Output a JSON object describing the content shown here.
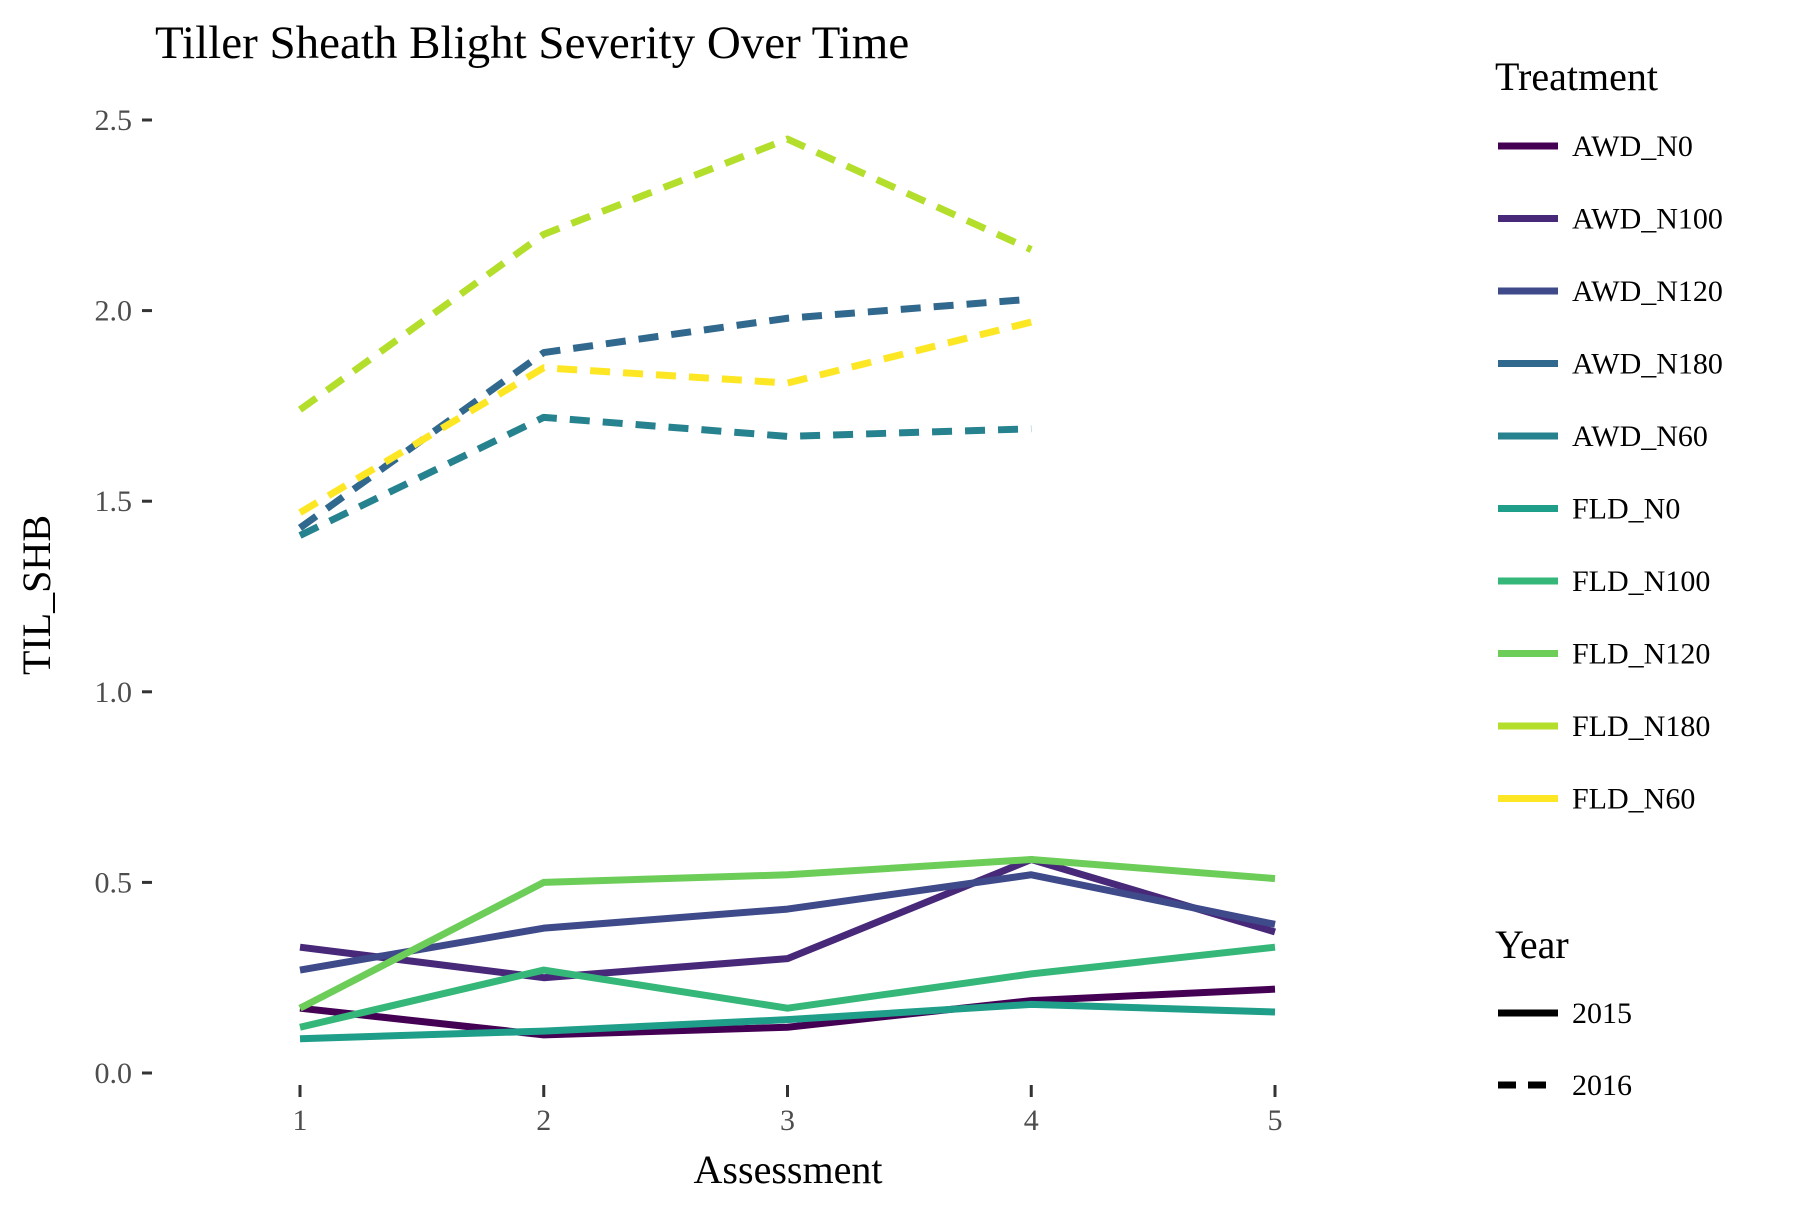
{
  "chart_data": {
    "type": "line",
    "title": "Tiller Sheath Blight Severity Over Time",
    "xlabel": "Assessment",
    "ylabel": "TIL_SHB",
    "x": [
      1,
      2,
      3,
      4,
      5
    ],
    "x_ticks": [
      "1",
      "2",
      "3",
      "4",
      "5"
    ],
    "y_ticks": [
      "0.0",
      "0.5",
      "1.0",
      "1.5",
      "2.0",
      "2.5"
    ],
    "xlim": [
      0.5,
      5.5
    ],
    "ylim": [
      0,
      2.55
    ],
    "grid": false,
    "legend_placement": "right",
    "legend_color": {
      "title": "Treatment",
      "entries": [
        {
          "label": "AWD_N0",
          "color": "#440154"
        },
        {
          "label": "AWD_N100",
          "color": "#482878"
        },
        {
          "label": "AWD_N120",
          "color": "#3E4A89"
        },
        {
          "label": "AWD_N180",
          "color": "#31688E"
        },
        {
          "label": "AWD_N60",
          "color": "#26828E"
        },
        {
          "label": "FLD_N0",
          "color": "#1F9E89"
        },
        {
          "label": "FLD_N100",
          "color": "#35B779"
        },
        {
          "label": "FLD_N120",
          "color": "#6DCD59"
        },
        {
          "label": "FLD_N180",
          "color": "#B4DE2C"
        },
        {
          "label": "FLD_N60",
          "color": "#FDE725"
        }
      ]
    },
    "legend_linetype": {
      "title": "Year",
      "entries": [
        {
          "label": "2015",
          "dash": "solid"
        },
        {
          "label": "2016",
          "dash": "dashed"
        }
      ]
    },
    "series": [
      {
        "treatment": "AWD_N0",
        "year": "2015",
        "color": "#440154",
        "dash": "solid",
        "values": [
          0.17,
          0.1,
          0.12,
          0.19,
          0.22
        ]
      },
      {
        "treatment": "AWD_N100",
        "year": "2015",
        "color": "#482878",
        "dash": "solid",
        "values": [
          0.33,
          0.25,
          0.3,
          0.56,
          0.37
        ]
      },
      {
        "treatment": "AWD_N120",
        "year": "2015",
        "color": "#3E4A89",
        "dash": "solid",
        "values": [
          0.27,
          0.38,
          0.43,
          0.52,
          0.39
        ]
      },
      {
        "treatment": "FLD_N0",
        "year": "2015",
        "color": "#1F9E89",
        "dash": "solid",
        "values": [
          0.09,
          0.11,
          0.14,
          0.18,
          0.16
        ]
      },
      {
        "treatment": "FLD_N100",
        "year": "2015",
        "color": "#35B779",
        "dash": "solid",
        "values": [
          0.12,
          0.27,
          0.17,
          0.26,
          0.33
        ]
      },
      {
        "treatment": "FLD_N120",
        "year": "2015",
        "color": "#6DCD59",
        "dash": "solid",
        "values": [
          0.17,
          0.5,
          0.52,
          0.56,
          0.51
        ]
      },
      {
        "treatment": "AWD_N180",
        "year": "2016",
        "color": "#31688E",
        "dash": "dashed",
        "values": [
          1.43,
          1.89,
          1.98,
          2.03,
          null
        ]
      },
      {
        "treatment": "AWD_N60",
        "year": "2016",
        "color": "#26828E",
        "dash": "dashed",
        "values": [
          1.41,
          1.72,
          1.67,
          1.69,
          null
        ]
      },
      {
        "treatment": "FLD_N180",
        "year": "2016",
        "color": "#B4DE2C",
        "dash": "dashed",
        "values": [
          1.74,
          2.2,
          2.45,
          2.16,
          null
        ]
      },
      {
        "treatment": "FLD_N60",
        "year": "2016",
        "color": "#FDE725",
        "dash": "dashed",
        "values": [
          1.47,
          1.85,
          1.81,
          1.97,
          null
        ]
      }
    ]
  }
}
